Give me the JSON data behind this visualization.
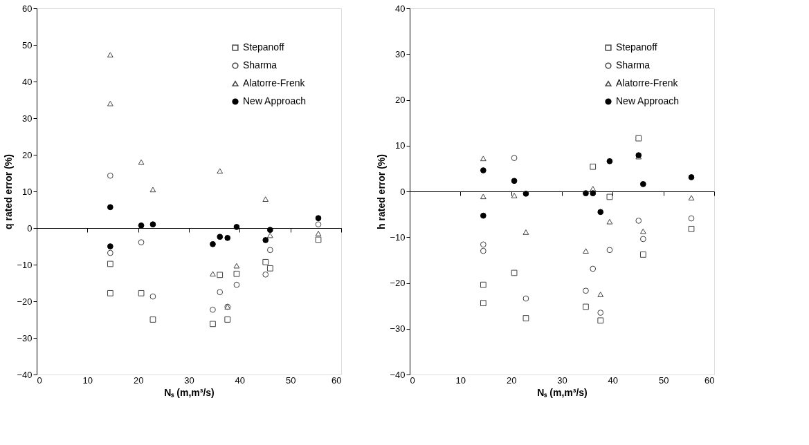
{
  "chart_data": [
    {
      "type": "scatter",
      "xlabel": "Nₛ (m,m³/s)",
      "ylabel": "q rated error (%)",
      "xlim": [
        0,
        60
      ],
      "xticks": [
        0,
        10,
        20,
        30,
        40,
        50,
        60
      ],
      "ylim": [
        -40,
        60
      ],
      "yticks": [
        -40,
        -30,
        -20,
        -10,
        0,
        10,
        20,
        30,
        40,
        50,
        60
      ],
      "legend": "top right",
      "series": [
        {
          "name": "Stepanoff",
          "color": "#404040",
          "marker": "square",
          "x": [
            14.5,
            14.5,
            20.6,
            22.9,
            34.7,
            36.1,
            37.6,
            39.4,
            45.1,
            46,
            55.5
          ],
          "values": [
            -9.8,
            -17.8,
            -17.8,
            -25,
            -26.2,
            -12.8,
            -25,
            -12.5,
            -9.3,
            -11,
            -3.2
          ]
        },
        {
          "name": "Sharma",
          "color": "#404040",
          "marker": "circle",
          "x": [
            14.5,
            14.5,
            20.6,
            22.9,
            34.7,
            36.1,
            37.6,
            39.4,
            45.1,
            46,
            55.5
          ],
          "values": [
            14.3,
            -6.8,
            -3.9,
            -18.7,
            -22.3,
            -17.5,
            -21.5,
            -15.5,
            -12.7,
            -6,
            1
          ]
        },
        {
          "name": "Alatorre-Frenk",
          "color": "#404040",
          "marker": "triangle",
          "x": [
            14.5,
            14.5,
            20.6,
            22.9,
            34.7,
            36.1,
            37.6,
            39.4,
            45.1,
            46,
            55.5
          ],
          "values": [
            47.3,
            34,
            18,
            10.5,
            -12.5,
            15.6,
            -21.5,
            -10.3,
            7.9,
            -2,
            -1.5
          ]
        },
        {
          "name": "New Approach",
          "color": "#000000",
          "marker": "circle",
          "x": [
            14.5,
            14.5,
            20.6,
            22.9,
            34.7,
            36.1,
            37.6,
            39.4,
            45.1,
            46,
            55.5
          ],
          "values": [
            5.7,
            -5,
            0.7,
            1,
            -4.4,
            -2.4,
            -2.7,
            0.3,
            -3.3,
            -0.5,
            2.7
          ]
        }
      ]
    },
    {
      "type": "scatter",
      "xlabel": "Nₛ (m,m³/s)",
      "ylabel": "h rated error (%)",
      "xlim": [
        0,
        60
      ],
      "xticks": [
        0,
        10,
        20,
        30,
        40,
        50,
        60
      ],
      "ylim": [
        -40,
        40
      ],
      "yticks": [
        -40,
        -30,
        -20,
        -10,
        0,
        10,
        20,
        30,
        40
      ],
      "legend": "top right",
      "series": [
        {
          "name": "Stepanoff",
          "color": "#404040",
          "marker": "square",
          "x": [
            14.5,
            14.5,
            20.6,
            22.9,
            34.7,
            36.1,
            37.6,
            39.4,
            45.1,
            46,
            55.5
          ],
          "values": [
            -20.4,
            -24.4,
            -17.8,
            -27.7,
            -25.2,
            5.4,
            -28.2,
            -1.2,
            11.6,
            -13.8,
            -8.2
          ]
        },
        {
          "name": "Sharma",
          "color": "#404040",
          "marker": "circle",
          "x": [
            14.5,
            14.5,
            20.6,
            22.9,
            34.7,
            36.1,
            37.6,
            39.4,
            45.1,
            46,
            55.5
          ],
          "values": [
            -13,
            -11.6,
            7.3,
            -23.4,
            -21.7,
            -16.9,
            -26.5,
            -12.8,
            -6.4,
            -10.4,
            -5.9
          ]
        },
        {
          "name": "Alatorre-Frenk",
          "color": "#404040",
          "marker": "triangle",
          "x": [
            14.5,
            14.5,
            20.6,
            22.9,
            34.7,
            36.1,
            37.6,
            39.4,
            45.1,
            46,
            55.5
          ],
          "values": [
            7.2,
            -1.1,
            -0.9,
            -8.9,
            -13,
            0.6,
            -22.5,
            -6.6,
            7.6,
            -8.7,
            -1.4
          ]
        },
        {
          "name": "New Approach",
          "color": "#000000",
          "marker": "circle",
          "x": [
            14.5,
            14.5,
            20.6,
            22.9,
            34.7,
            36.1,
            37.6,
            39.4,
            45.1,
            46,
            55.5
          ],
          "values": [
            4.6,
            -5.3,
            2.3,
            -0.5,
            -0.4,
            -0.4,
            -4.5,
            6.6,
            7.9,
            1.6,
            3.1
          ]
        }
      ]
    }
  ]
}
